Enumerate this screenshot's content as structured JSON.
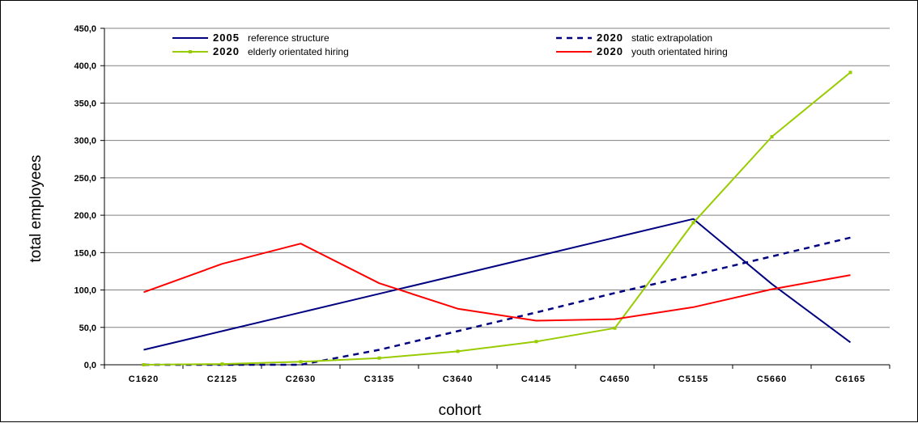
{
  "chart_data": {
    "type": "line",
    "xlabel": "cohort",
    "ylabel": "total employees",
    "ylim": [
      0,
      450
    ],
    "y_ticks": [
      "0,0",
      "50,0",
      "100,0",
      "150,0",
      "200,0",
      "250,0",
      "300,0",
      "350,0",
      "400,0",
      "450,0"
    ],
    "categories": [
      "C1620",
      "C2125",
      "C2630",
      "C3135",
      "C3640",
      "C4145",
      "C4650",
      "C5155",
      "C5660",
      "C6165"
    ],
    "grid": "horizontal",
    "legend_position": "top",
    "series": [
      {
        "key": "ref2005",
        "year": "2005",
        "desc": "reference structure",
        "color": "#000080",
        "style": "solid",
        "values": [
          20,
          45,
          70,
          95,
          120,
          145,
          170,
          195,
          108,
          30
        ]
      },
      {
        "key": "static2020",
        "year": "2020",
        "desc": "static extrapolation",
        "color": "#000080",
        "style": "dashed",
        "values": [
          0,
          0,
          0,
          20,
          45,
          70,
          96,
          120,
          145,
          170
        ]
      },
      {
        "key": "elderly2020",
        "year": "2020",
        "desc": "elderly orientated hiring",
        "color": "#99CC00",
        "style": "solid-markers",
        "values": [
          0,
          1,
          4,
          9,
          18,
          31,
          49,
          190,
          305,
          391
        ]
      },
      {
        "key": "youth2020",
        "year": "2020",
        "desc": "youth orientated hiring",
        "color": "#FF0000",
        "style": "solid",
        "values": [
          97,
          135,
          162,
          109,
          75,
          59,
          61,
          77,
          101,
          120
        ]
      }
    ]
  }
}
